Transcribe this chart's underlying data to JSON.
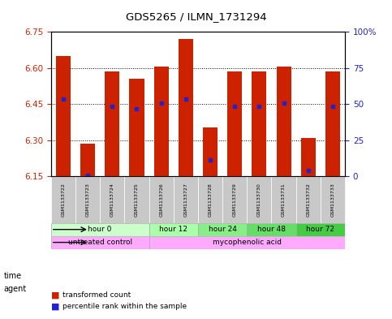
{
  "title": "GDS5265 / ILMN_1731294",
  "samples": [
    "GSM1133722",
    "GSM1133723",
    "GSM1133724",
    "GSM1133725",
    "GSM1133726",
    "GSM1133727",
    "GSM1133728",
    "GSM1133729",
    "GSM1133730",
    "GSM1133731",
    "GSM1133732",
    "GSM1133733"
  ],
  "bar_bottoms": [
    6.15,
    6.15,
    6.15,
    6.15,
    6.15,
    6.15,
    6.15,
    6.15,
    6.15,
    6.15,
    6.15,
    6.15
  ],
  "bar_tops": [
    6.65,
    6.285,
    6.585,
    6.555,
    6.605,
    6.72,
    6.355,
    6.585,
    6.585,
    6.605,
    6.31,
    6.585
  ],
  "percentile_values": [
    6.47,
    6.155,
    6.44,
    6.43,
    6.455,
    6.47,
    6.22,
    6.44,
    6.44,
    6.455,
    6.175,
    6.44
  ],
  "ylim_left": [
    6.15,
    6.75
  ],
  "ylim_right": [
    0,
    100
  ],
  "yticks_left": [
    6.15,
    6.3,
    6.45,
    6.6,
    6.75
  ],
  "yticks_right": [
    0,
    25,
    50,
    75,
    100
  ],
  "bar_color": "#cc2200",
  "percentile_color": "#2222cc",
  "grid_color": "#000000",
  "time_groups": [
    {
      "label": "hour 0",
      "start": 0,
      "end": 4,
      "color": "#ccffcc"
    },
    {
      "label": "hour 12",
      "start": 4,
      "end": 6,
      "color": "#aaffaa"
    },
    {
      "label": "hour 24",
      "start": 6,
      "end": 8,
      "color": "#88ee88"
    },
    {
      "label": "hour 48",
      "start": 8,
      "end": 10,
      "color": "#66dd66"
    },
    {
      "label": "hour 72",
      "start": 10,
      "end": 12,
      "color": "#44cc44"
    }
  ],
  "agent_groups": [
    {
      "label": "untreated control",
      "start": 0,
      "end": 4,
      "color": "#ffaaff"
    },
    {
      "label": "mycophenolic acid",
      "start": 4,
      "end": 12,
      "color": "#ffaaff"
    }
  ],
  "legend_items": [
    {
      "label": "transformed count",
      "color": "#cc2200"
    },
    {
      "label": "percentile rank within the sample",
      "color": "#2222cc"
    }
  ],
  "xlabel_time": "time",
  "xlabel_agent": "agent",
  "bar_width": 0.6
}
